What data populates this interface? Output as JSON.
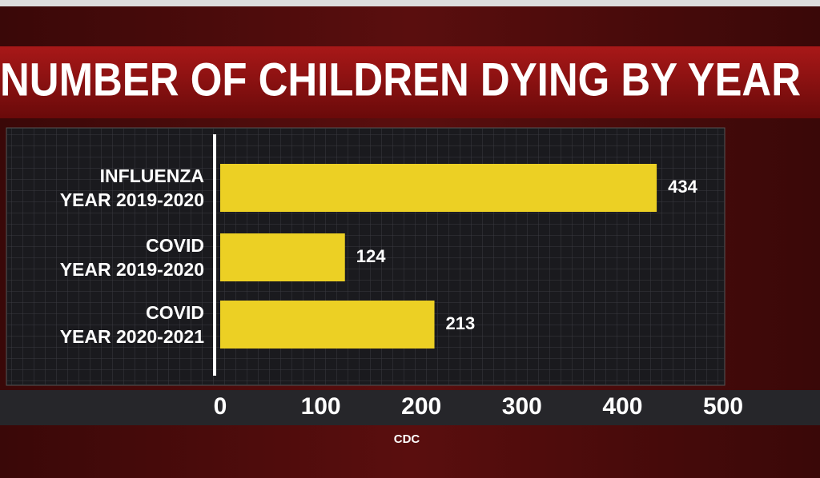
{
  "chart_data": {
    "type": "barh",
    "title": "NUMBER OF CHILDREN DYING BY YEAR",
    "categories": [
      "INFLUENZA\nYEAR 2019-2020",
      "COVID\nYEAR 2019-2020",
      "COVID\nYEAR 2020-2021"
    ],
    "values": [
      434,
      124,
      213
    ],
    "color": "#ecd024",
    "xlim": [
      0,
      500
    ],
    "xticks": [
      0,
      100,
      200,
      300,
      400,
      500
    ],
    "source": "CDC"
  }
}
